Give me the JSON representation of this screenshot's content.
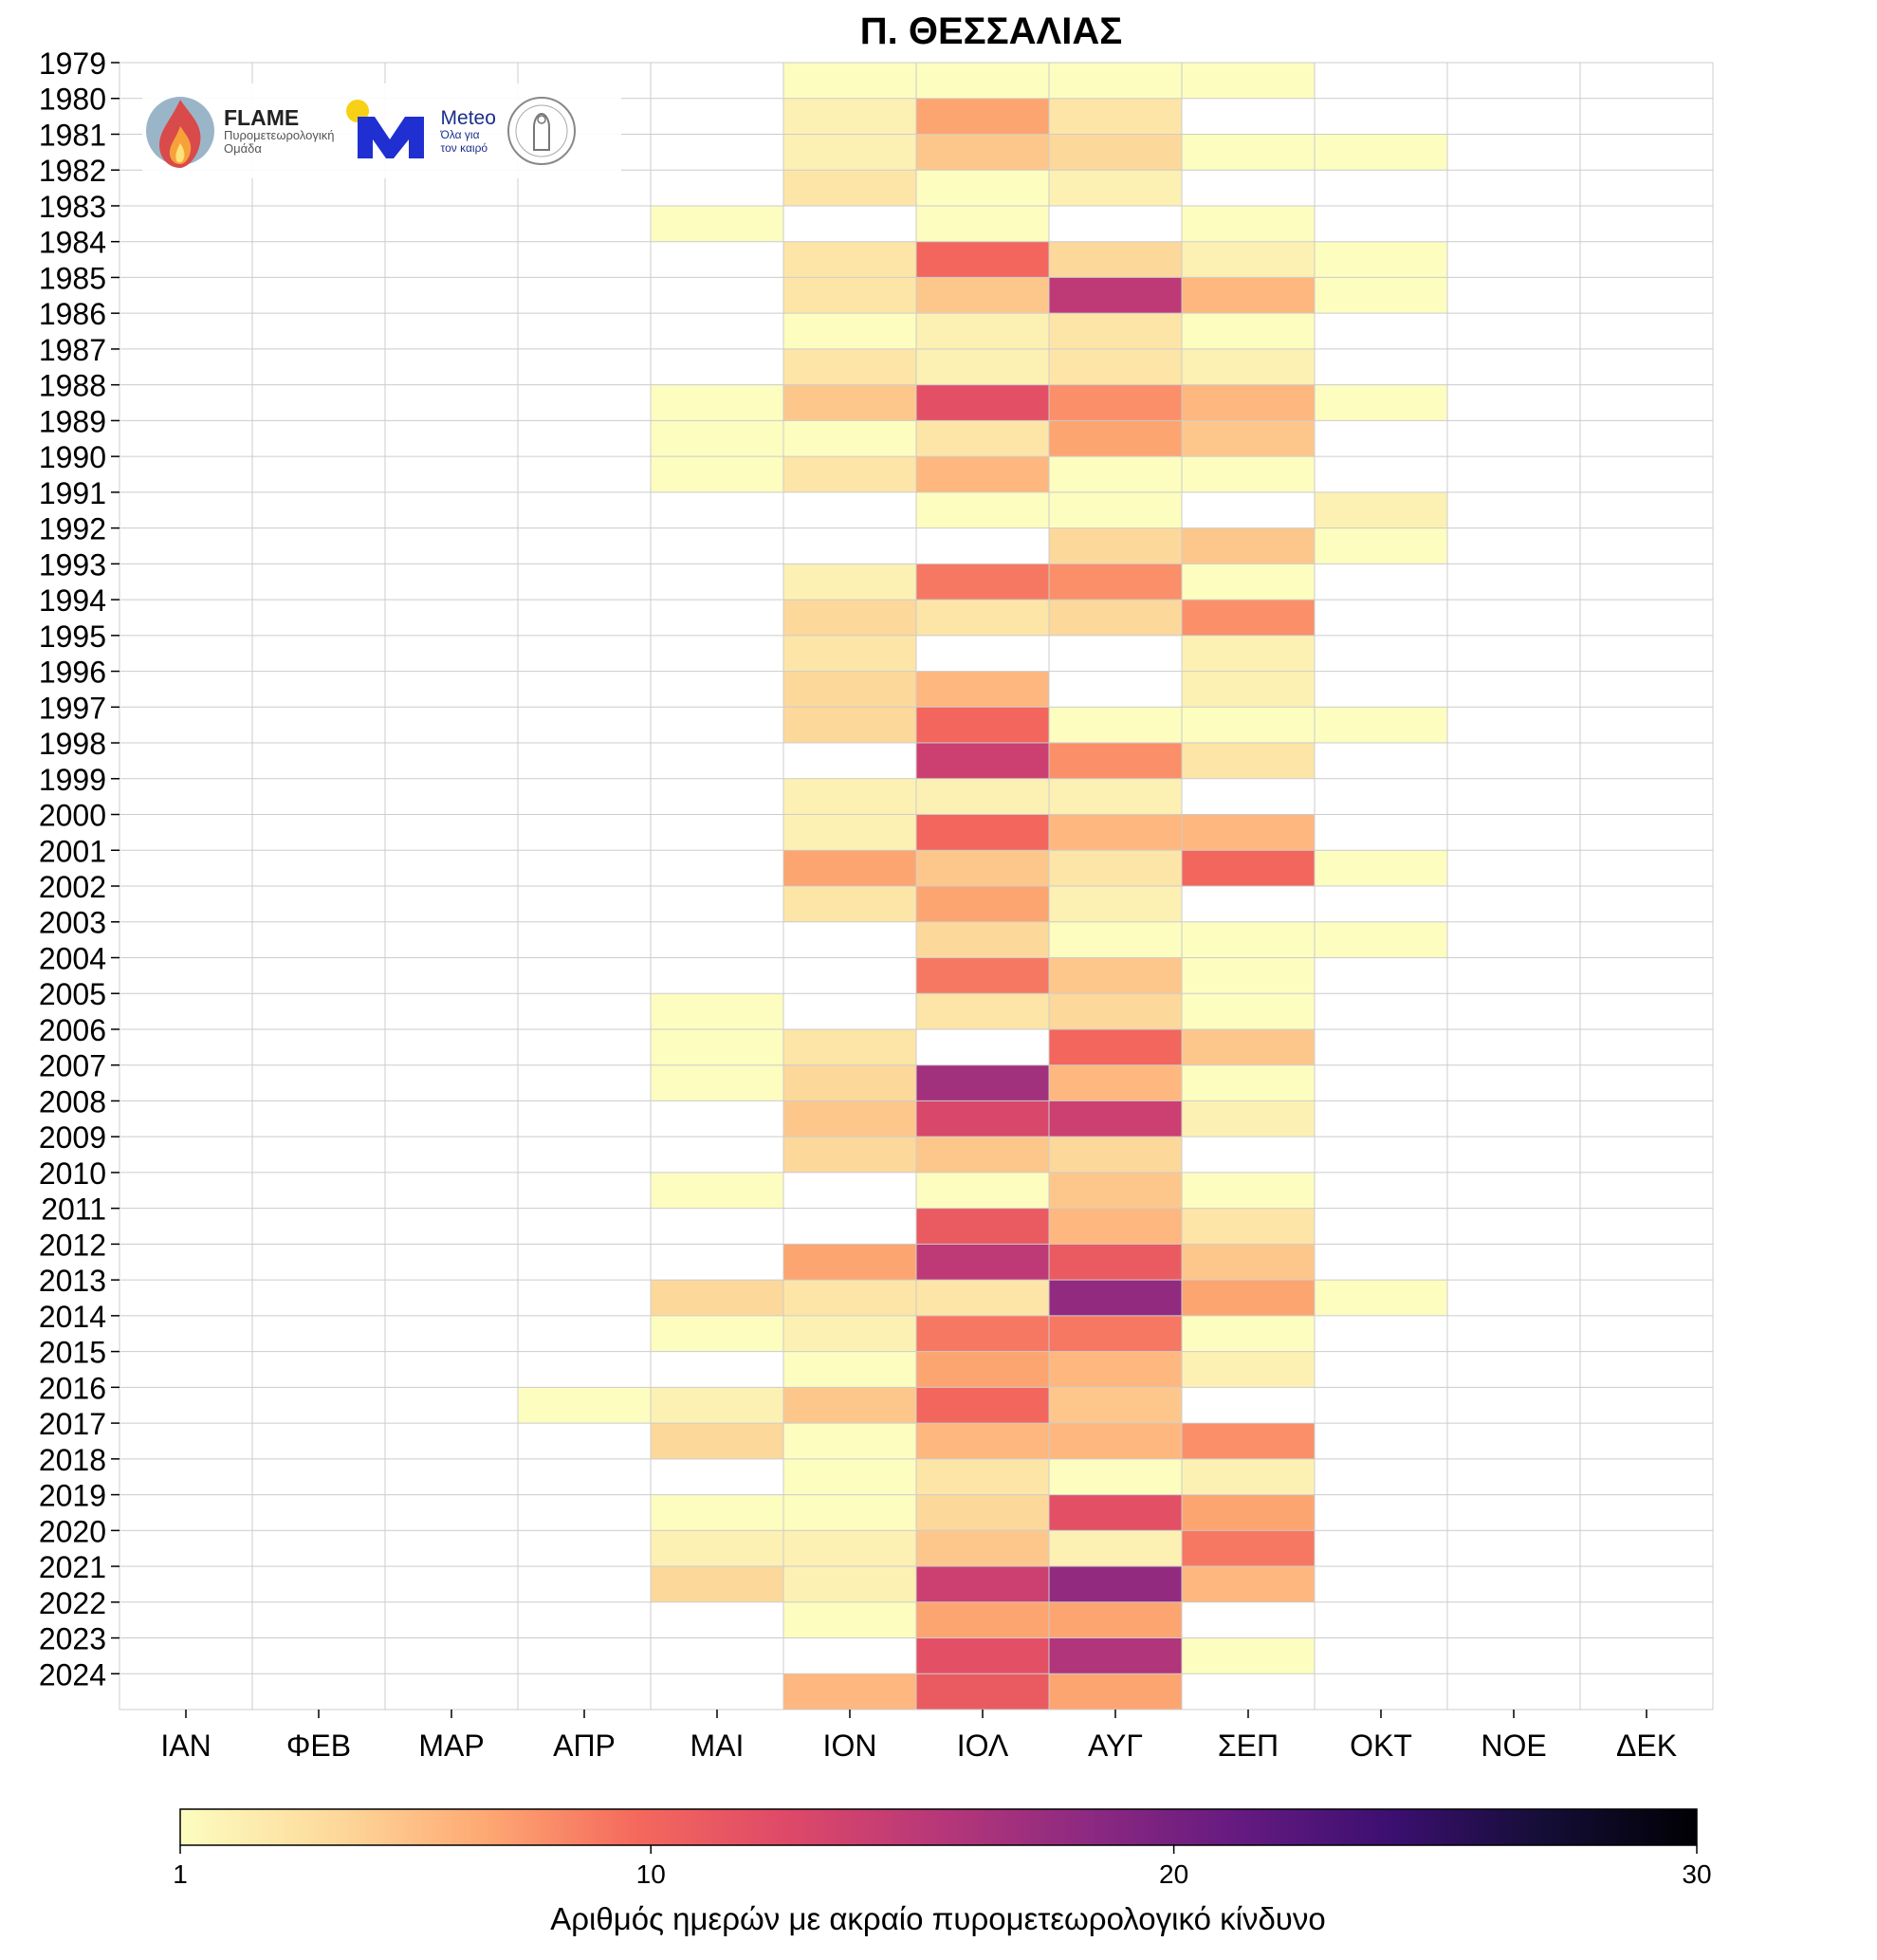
{
  "logos": {
    "flame_name": "FLAME",
    "flame_subtitle_1": "Πυρομετεωρολογική",
    "flame_subtitle_2": "Ομάδα",
    "meteo_name": "Meteo",
    "meteo_subtitle_1": "Όλα για",
    "meteo_subtitle_2": "τον καιρό"
  },
  "chart_data": {
    "type": "heatmap",
    "title": "Π. ΘΕΣΣΑΛΙΑΣ",
    "x_categories": [
      "ΙΑΝ",
      "ΦΕΒ",
      "ΜΑΡ",
      "ΑΠΡ",
      "ΜΑΙ",
      "ΙΟΝ",
      "ΙΟΛ",
      "ΑΥΓ",
      "ΣΕΠ",
      "ΟΚΤ",
      "ΝΟΕ",
      "ΔΕΚ"
    ],
    "y_categories": [
      "1979",
      "1980",
      "1981",
      "1982",
      "1983",
      "1984",
      "1985",
      "1986",
      "1987",
      "1988",
      "1989",
      "1990",
      "1991",
      "1992",
      "1993",
      "1994",
      "1995",
      "1996",
      "1997",
      "1998",
      "1999",
      "2000",
      "2001",
      "2002",
      "2003",
      "2004",
      "2005",
      "2006",
      "2007",
      "2008",
      "2009",
      "2010",
      "2011",
      "2012",
      "2013",
      "2014",
      "2015",
      "2016",
      "2017",
      "2018",
      "2019",
      "2020",
      "2021",
      "2022",
      "2023",
      "2024"
    ],
    "values": [
      [
        0,
        0,
        0,
        0,
        0,
        1,
        1,
        1,
        1,
        0,
        0,
        0
      ],
      [
        0,
        0,
        0,
        0,
        0,
        2,
        7,
        3,
        0,
        0,
        0,
        0
      ],
      [
        0,
        0,
        0,
        0,
        0,
        2,
        5,
        4,
        1,
        1,
        0,
        0
      ],
      [
        0,
        0,
        0,
        0,
        0,
        3,
        1,
        2,
        0,
        0,
        0,
        0
      ],
      [
        0,
        0,
        0,
        0,
        1,
        0,
        1,
        0,
        1,
        0,
        0,
        0
      ],
      [
        0,
        0,
        0,
        0,
        0,
        3,
        10,
        4,
        2,
        1,
        0,
        0
      ],
      [
        0,
        0,
        0,
        0,
        0,
        3,
        5,
        15,
        6,
        1,
        0,
        0
      ],
      [
        0,
        0,
        0,
        0,
        0,
        1,
        2,
        3,
        1,
        0,
        0,
        0
      ],
      [
        0,
        0,
        0,
        0,
        0,
        3,
        2,
        3,
        2,
        0,
        0,
        0
      ],
      [
        0,
        0,
        0,
        0,
        1,
        5,
        12,
        8,
        6,
        1,
        0,
        0
      ],
      [
        0,
        0,
        0,
        0,
        1,
        1,
        3,
        7,
        5,
        0,
        0,
        0
      ],
      [
        0,
        0,
        0,
        0,
        1,
        3,
        6,
        1,
        1,
        0,
        0,
        0
      ],
      [
        0,
        0,
        0,
        0,
        0,
        0,
        1,
        1,
        0,
        2,
        0,
        0
      ],
      [
        0,
        0,
        0,
        0,
        0,
        0,
        0,
        4,
        5,
        1,
        0,
        0
      ],
      [
        0,
        0,
        0,
        0,
        0,
        2,
        9,
        8,
        1,
        0,
        0,
        0
      ],
      [
        0,
        0,
        0,
        0,
        0,
        4,
        3,
        4,
        8,
        0,
        0,
        0
      ],
      [
        0,
        0,
        0,
        0,
        0,
        3,
        0,
        0,
        2,
        0,
        0,
        0
      ],
      [
        0,
        0,
        0,
        0,
        0,
        4,
        6,
        0,
        2,
        0,
        0,
        0
      ],
      [
        0,
        0,
        0,
        0,
        0,
        4,
        10,
        1,
        1,
        1,
        0,
        0
      ],
      [
        0,
        0,
        0,
        0,
        0,
        0,
        14,
        8,
        3,
        0,
        0,
        0
      ],
      [
        0,
        0,
        0,
        0,
        0,
        2,
        2,
        2,
        0,
        0,
        0,
        0
      ],
      [
        0,
        0,
        0,
        0,
        0,
        2,
        10,
        6,
        6,
        0,
        0,
        0
      ],
      [
        0,
        0,
        0,
        0,
        0,
        7,
        5,
        3,
        10,
        1,
        0,
        0
      ],
      [
        0,
        0,
        0,
        0,
        0,
        3,
        7,
        2,
        0,
        0,
        0,
        0
      ],
      [
        0,
        0,
        0,
        0,
        0,
        0,
        4,
        1,
        1,
        1,
        0,
        0
      ],
      [
        0,
        0,
        0,
        0,
        0,
        0,
        9,
        5,
        1,
        0,
        0,
        0
      ],
      [
        0,
        0,
        0,
        0,
        1,
        0,
        3,
        4,
        1,
        0,
        0,
        0
      ],
      [
        0,
        0,
        0,
        0,
        1,
        3,
        0,
        10,
        5,
        0,
        0,
        0
      ],
      [
        0,
        0,
        0,
        0,
        1,
        4,
        17,
        6,
        1,
        0,
        0,
        0
      ],
      [
        0,
        0,
        0,
        0,
        0,
        5,
        13,
        14,
        2,
        0,
        0,
        0
      ],
      [
        0,
        0,
        0,
        0,
        0,
        4,
        5,
        4,
        0,
        0,
        0,
        0
      ],
      [
        0,
        0,
        0,
        0,
        1,
        0,
        1,
        5,
        1,
        0,
        0,
        0
      ],
      [
        0,
        0,
        0,
        0,
        0,
        0,
        11,
        6,
        3,
        0,
        0,
        0
      ],
      [
        0,
        0,
        0,
        0,
        0,
        7,
        15,
        11,
        5,
        0,
        0,
        0
      ],
      [
        0,
        0,
        0,
        0,
        4,
        3,
        3,
        18,
        7,
        1,
        0,
        0
      ],
      [
        0,
        0,
        0,
        0,
        1,
        2,
        9,
        9,
        1,
        0,
        0,
        0
      ],
      [
        0,
        0,
        0,
        0,
        0,
        1,
        7,
        6,
        2,
        0,
        0,
        0
      ],
      [
        0,
        0,
        0,
        1,
        2,
        5,
        10,
        5,
        0,
        0,
        0,
        0
      ],
      [
        0,
        0,
        0,
        0,
        4,
        1,
        6,
        6,
        8,
        0,
        0,
        0
      ],
      [
        0,
        0,
        0,
        0,
        0,
        1,
        3,
        1,
        2,
        0,
        0,
        0
      ],
      [
        0,
        0,
        0,
        0,
        1,
        1,
        4,
        12,
        7,
        0,
        0,
        0
      ],
      [
        0,
        0,
        0,
        0,
        2,
        2,
        5,
        2,
        9,
        0,
        0,
        0
      ],
      [
        0,
        0,
        0,
        0,
        4,
        2,
        14,
        18,
        6,
        0,
        0,
        0
      ],
      [
        0,
        0,
        0,
        0,
        0,
        1,
        7,
        7,
        0,
        0,
        0,
        0
      ],
      [
        0,
        0,
        0,
        0,
        0,
        0,
        12,
        16,
        1,
        0,
        0,
        0
      ],
      [
        0,
        0,
        0,
        0,
        0,
        6,
        11,
        7,
        0,
        0,
        0,
        0
      ]
    ],
    "zero_color": "#ffffff",
    "colormap": "magma_r",
    "colorbar": {
      "min": 1,
      "max": 30,
      "ticks": [
        1,
        10,
        20,
        30
      ],
      "label": "Αριθμός ημερών με ακραίο πυρομετεωρολογικό κίνδυνο",
      "orientation": "horizontal",
      "placement": "bottom"
    },
    "grid": true
  }
}
